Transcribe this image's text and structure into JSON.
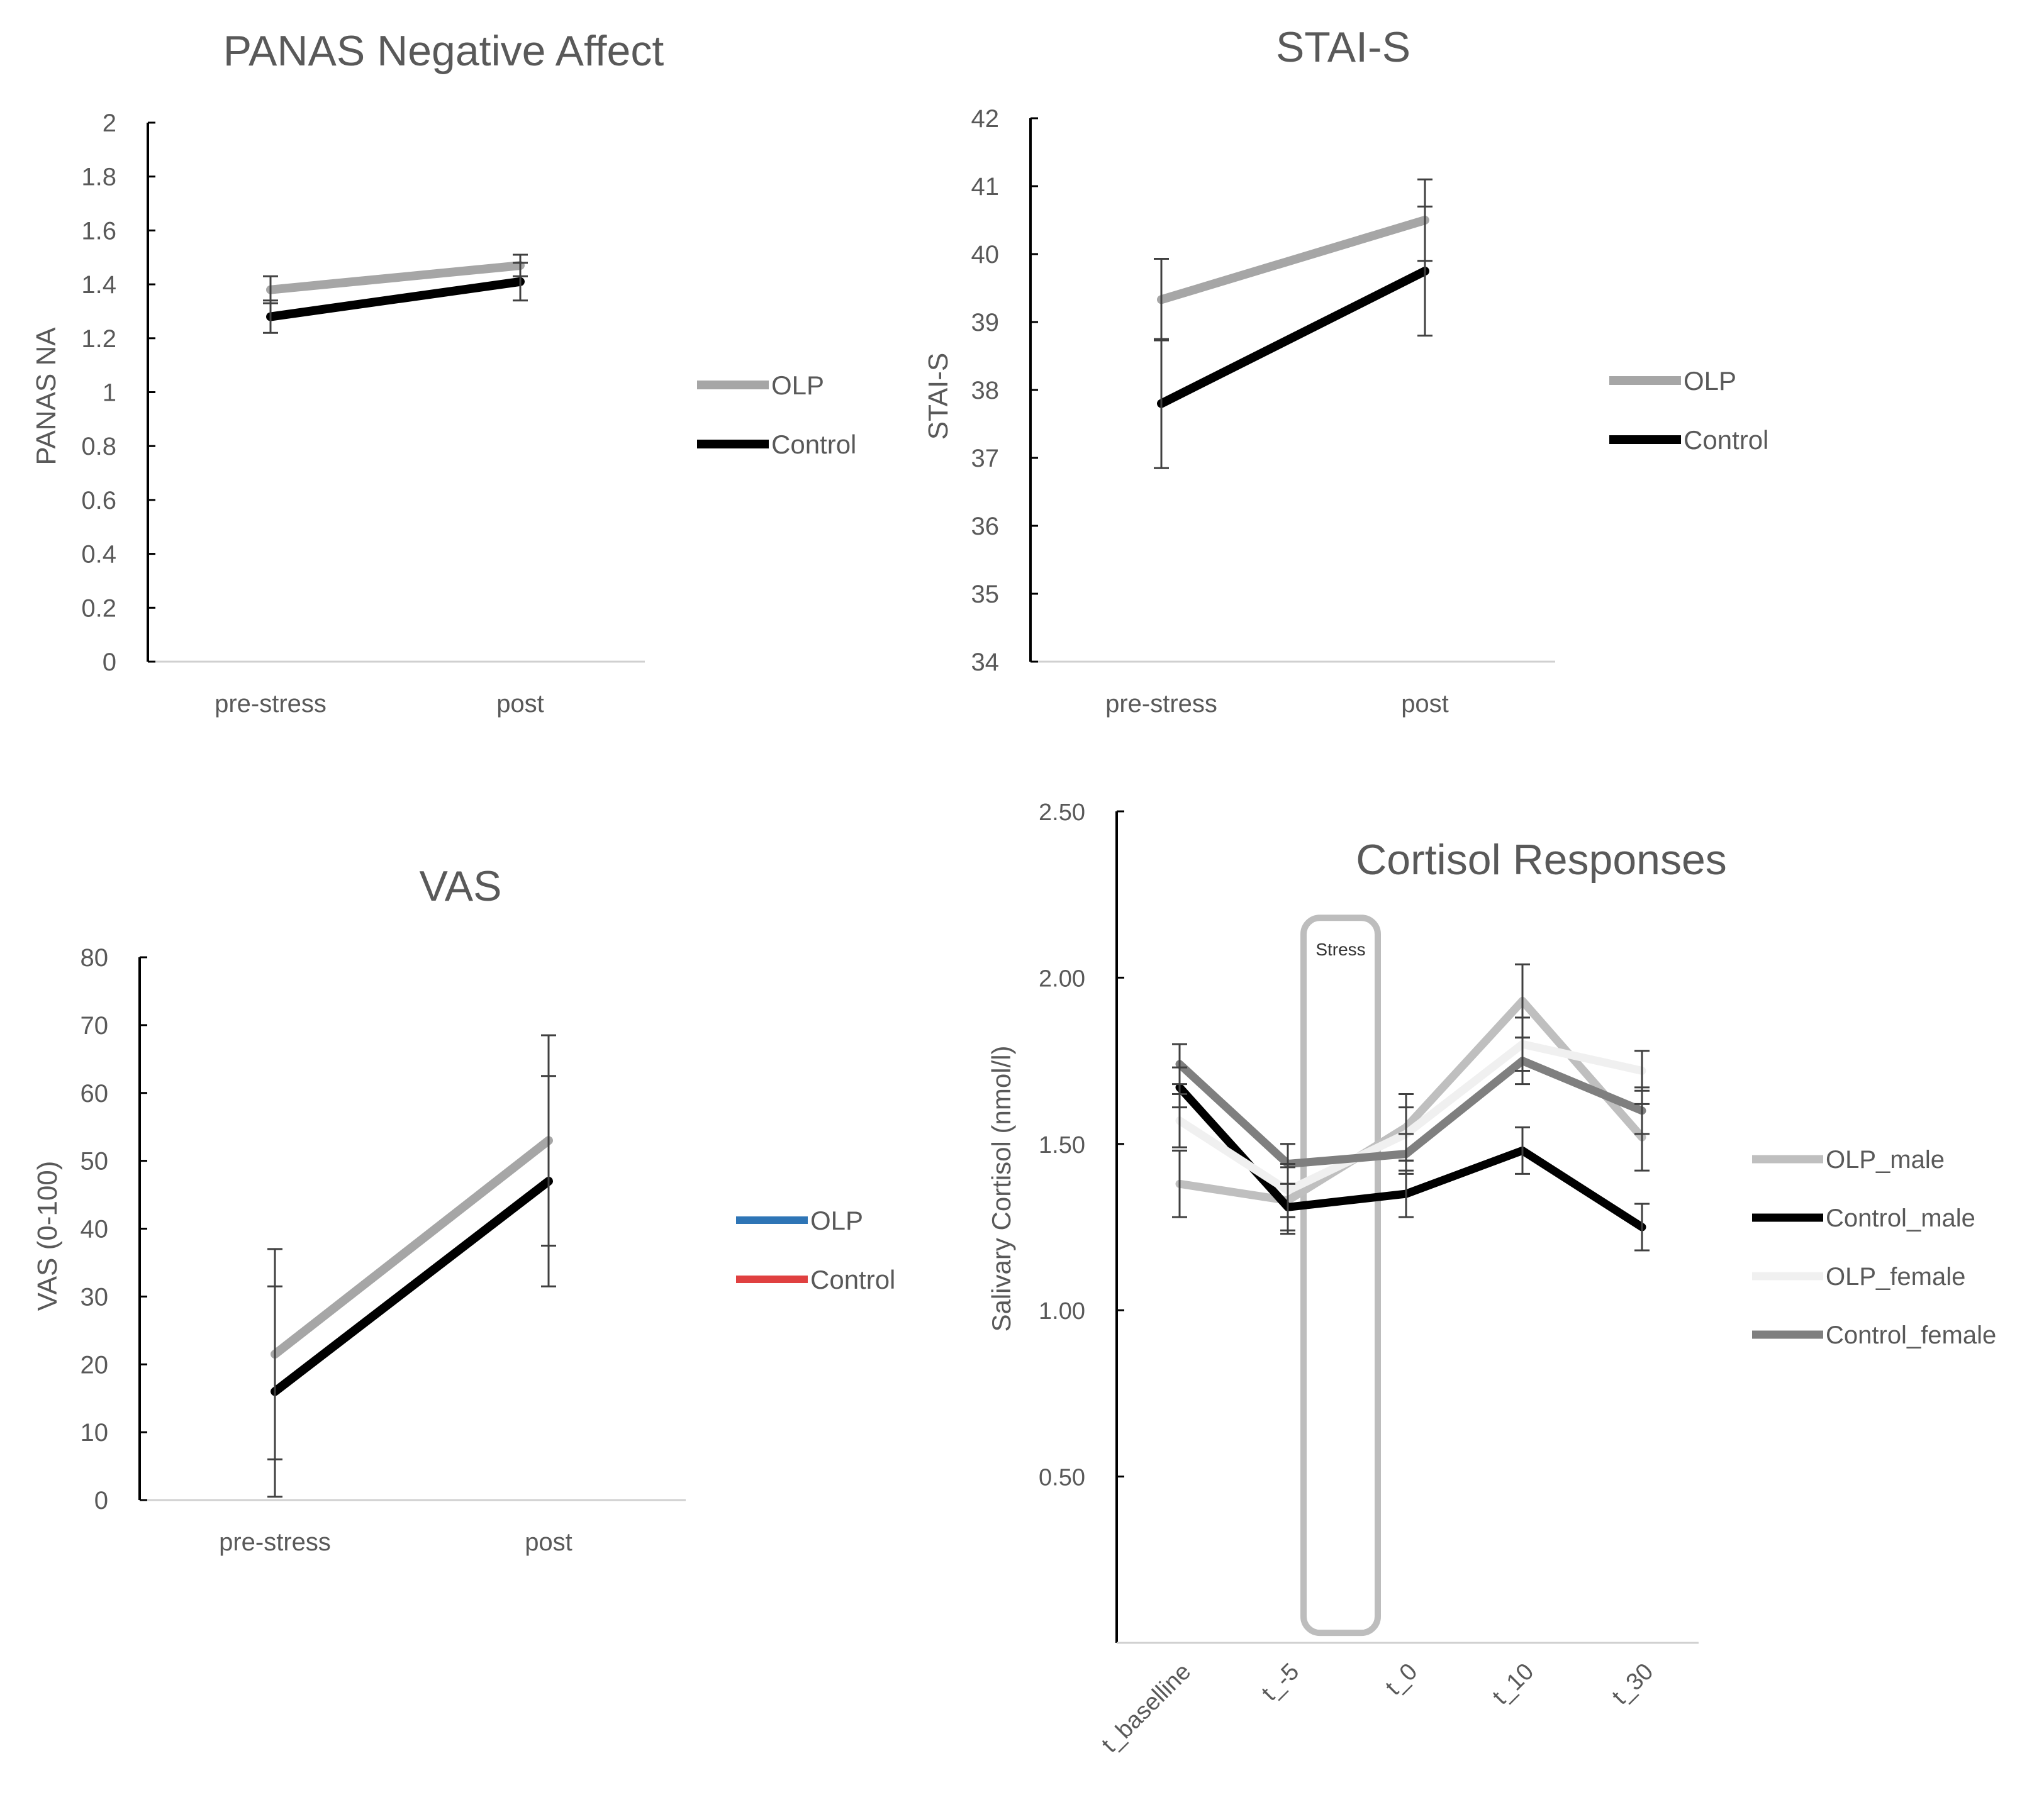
{
  "chart_data": [
    {
      "id": "panas",
      "type": "line",
      "title": "PANAS Negative Affect",
      "xlabel": "",
      "ylabel": "PANAS NA",
      "categories": [
        "pre-stress",
        "post"
      ],
      "ylim": [
        0,
        2
      ],
      "yticks": [
        0,
        0.2,
        0.4,
        0.6,
        0.8,
        1,
        1.2,
        1.4,
        1.6,
        1.8,
        2
      ],
      "ytick_labels": [
        "0",
        "0.2",
        "0.4",
        "0.6",
        "0.8",
        "1",
        "1.2",
        "1.4",
        "1.6",
        "1.8",
        "2"
      ],
      "grid": false,
      "legend_position": "right",
      "series": [
        {
          "name": "OLP",
          "color": "#a6a6a6",
          "values": [
            1.38,
            1.47
          ],
          "errors": [
            0.05,
            0.04
          ]
        },
        {
          "name": "Control",
          "color": "#000000",
          "values": [
            1.28,
            1.41
          ],
          "errors": [
            0.06,
            0.07
          ]
        }
      ]
    },
    {
      "id": "stai",
      "type": "line",
      "title": "STAI-S",
      "xlabel": "",
      "ylabel": "STAI-S",
      "categories": [
        "pre-stress",
        "post"
      ],
      "ylim": [
        34,
        42
      ],
      "yticks": [
        34,
        35,
        36,
        37,
        38,
        39,
        40,
        41,
        42
      ],
      "ytick_labels": [
        "34",
        "35",
        "36",
        "37",
        "38",
        "39",
        "40",
        "41",
        "42"
      ],
      "grid": false,
      "legend_position": "right",
      "series": [
        {
          "name": "OLP",
          "color": "#a6a6a6",
          "values": [
            39.33,
            40.5
          ],
          "errors": [
            0.6,
            0.6
          ]
        },
        {
          "name": "Control",
          "color": "#000000",
          "values": [
            37.8,
            39.75
          ],
          "errors": [
            0.95,
            0.95
          ]
        }
      ]
    },
    {
      "id": "vas",
      "type": "line",
      "title": "VAS",
      "xlabel": "",
      "ylabel": "VAS (0-100)",
      "categories": [
        "pre-stress",
        "post"
      ],
      "ylim": [
        0,
        80
      ],
      "yticks": [
        0,
        10,
        20,
        30,
        40,
        50,
        60,
        70,
        80
      ],
      "ytick_labels": [
        "0",
        "10",
        "20",
        "30",
        "40",
        "50",
        "60",
        "70",
        "80"
      ],
      "grid": false,
      "legend_position": "right",
      "series": [
        {
          "name": "OLP",
          "color": "#a6a6a6",
          "legend_color": "#2e75b6",
          "values": [
            21.5,
            53
          ],
          "errors": [
            15.5,
            15.5
          ]
        },
        {
          "name": "Control",
          "color": "#000000",
          "legend_color": "#e04040",
          "values": [
            16,
            47
          ],
          "errors": [
            15.5,
            15.5
          ]
        }
      ]
    },
    {
      "id": "cortisol",
      "type": "line",
      "title": "Cortisol Responses",
      "xlabel": "",
      "ylabel": "Salivary Cortisol (nmol/l)",
      "categories": [
        "t_baselline",
        "t_-5",
        "t_0",
        "t_10",
        "t_30"
      ],
      "ylim": [
        0,
        2.5
      ],
      "yticks": [
        0.5,
        1.0,
        1.5,
        2.0,
        2.5
      ],
      "ytick_labels": [
        "0.50",
        "1.00",
        "1.50",
        "2.00",
        "2.50"
      ],
      "grid": false,
      "legend_position": "right",
      "annotation": {
        "text": "Stress",
        "x_from": "t_-5",
        "x_to": "t_0",
        "y_from": 0.03,
        "y_to": 2.18
      },
      "series": [
        {
          "name": "OLP_male",
          "color": "#bfbfbf",
          "values": [
            1.38,
            1.33,
            1.55,
            1.93,
            1.52
          ],
          "errors": [
            0.1,
            0.1,
            0.1,
            0.11,
            0.1
          ]
        },
        {
          "name": "Control_male",
          "color": "#000000",
          "values": [
            1.67,
            1.31,
            1.35,
            1.48,
            1.25
          ],
          "errors": [
            0.06,
            0.07,
            0.07,
            0.07,
            0.07
          ]
        },
        {
          "name": "OLP_female",
          "color": "#f0f0f0",
          "values": [
            1.57,
            1.36,
            1.53,
            1.8,
            1.72
          ],
          "errors": [
            0.08,
            0.08,
            0.08,
            0.08,
            0.06
          ]
        },
        {
          "name": "Control_female",
          "color": "#7f7f7f",
          "values": [
            1.74,
            1.44,
            1.47,
            1.75,
            1.6
          ],
          "errors": [
            0.06,
            0.06,
            0.06,
            0.07,
            0.07
          ]
        }
      ]
    }
  ]
}
